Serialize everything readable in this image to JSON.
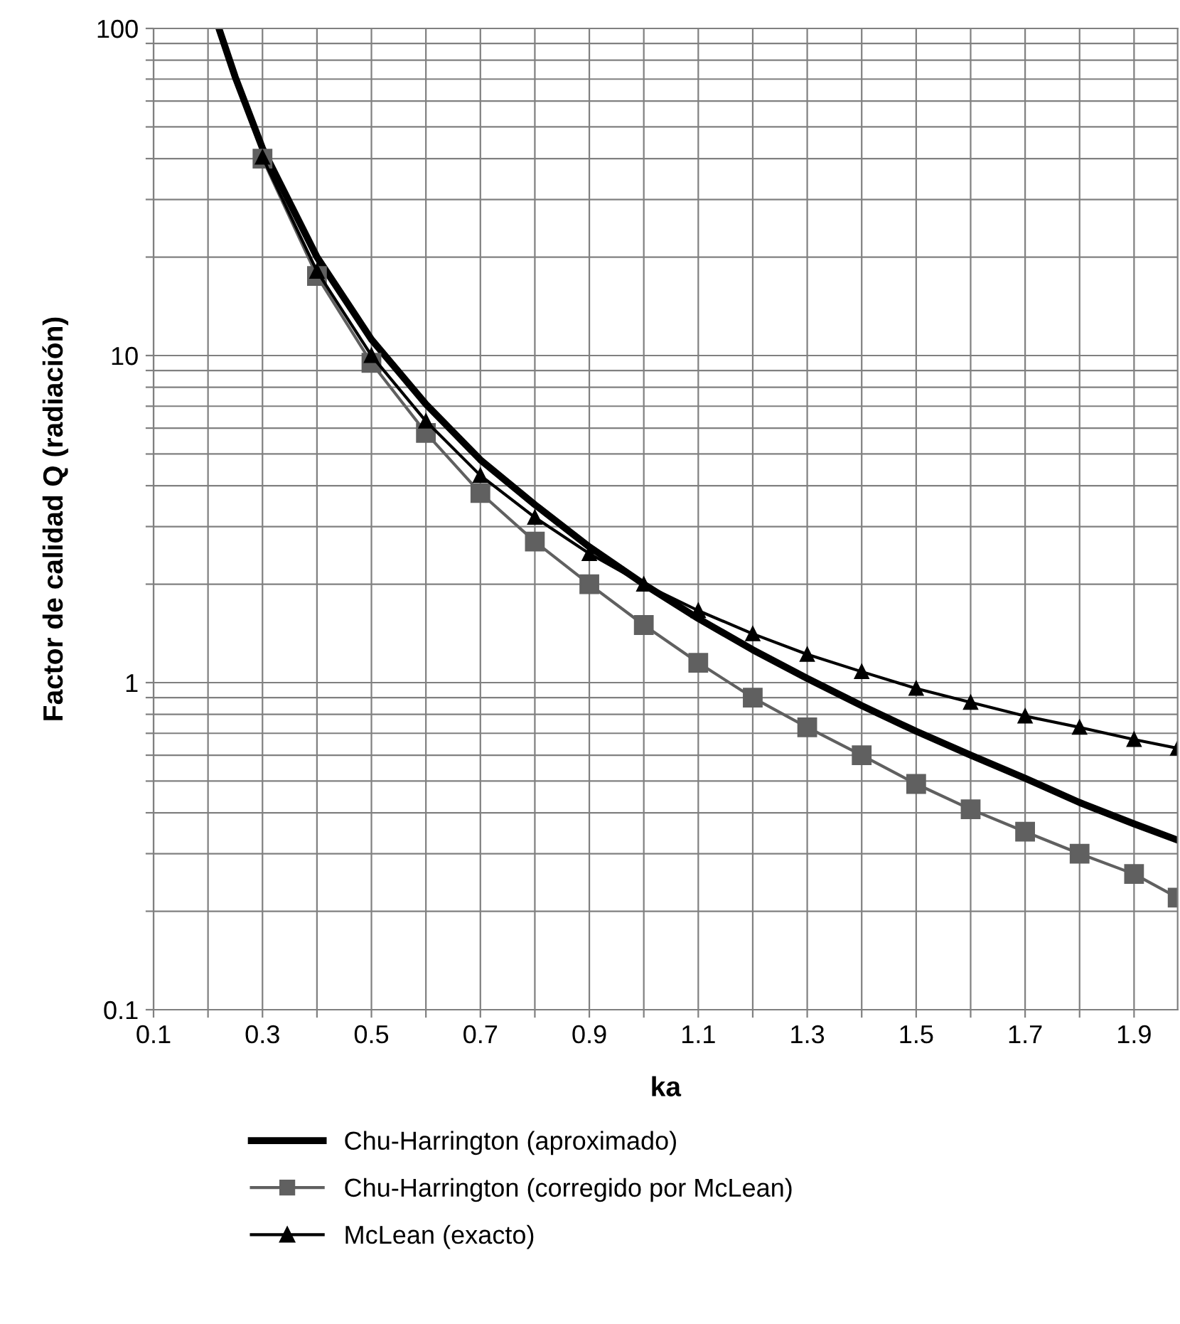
{
  "chart_data": {
    "type": "line",
    "xlabel": "ka",
    "ylabel": "Factor de calidad Q (radiación)",
    "log": "y",
    "grid": true,
    "legend": "bottom",
    "xlim": [
      0.1,
      1.98
    ],
    "ylim": [
      0.1,
      100
    ],
    "xticks": [
      0.1,
      {
        "value": 0.2,
        "label": null
      },
      0.3,
      {
        "value": 0.4,
        "label": null
      },
      0.5,
      {
        "value": 0.6,
        "label": null
      },
      0.7,
      {
        "value": 0.8,
        "label": null
      },
      0.9,
      {
        "value": 1.0,
        "label": null
      },
      1.1,
      {
        "value": 1.2,
        "label": null
      },
      1.3,
      {
        "value": 1.4,
        "label": null
      },
      1.5,
      {
        "value": 1.6,
        "label": null
      },
      1.7,
      {
        "value": 1.8,
        "label": null
      },
      1.9
    ],
    "yticks": [
      0.1,
      {
        "value": 0.2,
        "label": null
      },
      {
        "value": 0.3,
        "label": null
      },
      {
        "value": 0.4,
        "label": null
      },
      {
        "value": 0.5,
        "label": null
      },
      {
        "value": 0.6,
        "label": null
      },
      {
        "value": 0.7,
        "label": null
      },
      {
        "value": 0.8,
        "label": null
      },
      {
        "value": 0.9,
        "label": null
      },
      1,
      {
        "value": 2,
        "label": null
      },
      {
        "value": 3,
        "label": null
      },
      {
        "value": 4,
        "label": null
      },
      {
        "value": 5,
        "label": null
      },
      {
        "value": 6,
        "label": null
      },
      {
        "value": 7,
        "label": null
      },
      {
        "value": 8,
        "label": null
      },
      {
        "value": 9,
        "label": null
      },
      10,
      {
        "value": 20,
        "label": null
      },
      {
        "value": 30,
        "label": null
      },
      {
        "value": 40,
        "label": null
      },
      {
        "value": 50,
        "label": null
      },
      {
        "value": 60,
        "label": null
      },
      {
        "value": 70,
        "label": null
      },
      {
        "value": 80,
        "label": null
      },
      {
        "value": 90,
        "label": null
      },
      100
    ],
    "series": [
      {
        "name": "Chu-Harrington (aproximado)",
        "color": "#000000",
        "marker": "none",
        "x": [
          0.22,
          0.25,
          0.3,
          0.4,
          0.5,
          0.6,
          0.7,
          0.8,
          0.9,
          1.0,
          1.1,
          1.2,
          1.3,
          1.4,
          1.5,
          1.6,
          1.7,
          1.8,
          1.9,
          1.98
        ],
        "values": [
          100,
          71,
          43,
          20,
          11.2,
          7.1,
          4.8,
          3.5,
          2.6,
          2.0,
          1.57,
          1.26,
          1.03,
          0.85,
          0.71,
          0.6,
          0.51,
          0.43,
          0.37,
          0.33
        ]
      },
      {
        "name": "Chu-Harrington (corregido por McLean)",
        "color": "#606060",
        "marker": "square",
        "x": [
          0.3,
          0.4,
          0.5,
          0.6,
          0.7,
          0.8,
          0.9,
          1.0,
          1.1,
          1.2,
          1.3,
          1.4,
          1.5,
          1.6,
          1.7,
          1.8,
          1.9,
          1.98
        ],
        "values": [
          40,
          17.5,
          9.5,
          5.8,
          3.8,
          2.7,
          2.0,
          1.5,
          1.15,
          0.9,
          0.73,
          0.6,
          0.49,
          0.41,
          0.35,
          0.3,
          0.26,
          0.22
        ]
      },
      {
        "name": "McLean (exacto)",
        "color": "#000000",
        "marker": "triangle",
        "x": [
          0.3,
          0.4,
          0.5,
          0.6,
          0.7,
          0.8,
          0.9,
          1.0,
          1.1,
          1.2,
          1.3,
          1.4,
          1.5,
          1.6,
          1.7,
          1.8,
          1.9,
          1.98
        ],
        "values": [
          40.4,
          18.1,
          10,
          6.3,
          4.3,
          3.2,
          2.48,
          2.0,
          1.66,
          1.41,
          1.22,
          1.08,
          0.96,
          0.87,
          0.79,
          0.73,
          0.67,
          0.63
        ]
      }
    ]
  }
}
